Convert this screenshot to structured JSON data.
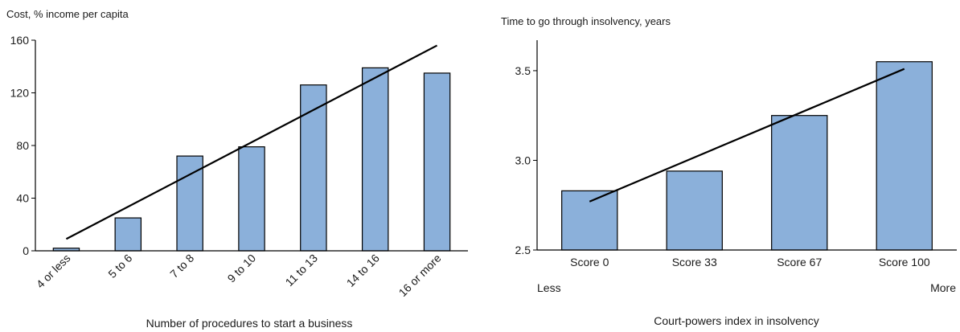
{
  "chart_data": [
    {
      "type": "bar",
      "title": "Cost, % income per capita",
      "xlabel": "Number of procedures to start a business",
      "ylabel": "",
      "ylim": [
        0,
        160
      ],
      "yticks": [
        "0",
        "40",
        "80",
        "120",
        "160"
      ],
      "categories": [
        "4 or less",
        "5 to 6",
        "7 to 8",
        "9 to 10",
        "11 to 13",
        "14 to 16",
        "16 or more"
      ],
      "values": [
        2,
        25,
        72,
        79,
        126,
        139,
        135
      ],
      "trendline": {
        "start": 9,
        "end": 156
      },
      "bar_color": "#8BB0DA",
      "trend_color": "#000000"
    },
    {
      "type": "bar",
      "title": "Time to go through insolvency, years",
      "xlabel": "Court-powers index in insolvency",
      "ylabel": "",
      "ylim": [
        2.5,
        3.67
      ],
      "yticks": [
        "2.5",
        "3.0",
        "3.5"
      ],
      "categories": [
        "Score 0",
        "Score 33",
        "Score 67",
        "Score 100"
      ],
      "values": [
        2.83,
        2.94,
        3.25,
        3.55
      ],
      "trendline": {
        "start": 2.77,
        "end": 3.51
      },
      "axis_left_label": "Less",
      "axis_right_label": "More",
      "bar_color": "#8BB0DA",
      "trend_color": "#000000"
    }
  ]
}
